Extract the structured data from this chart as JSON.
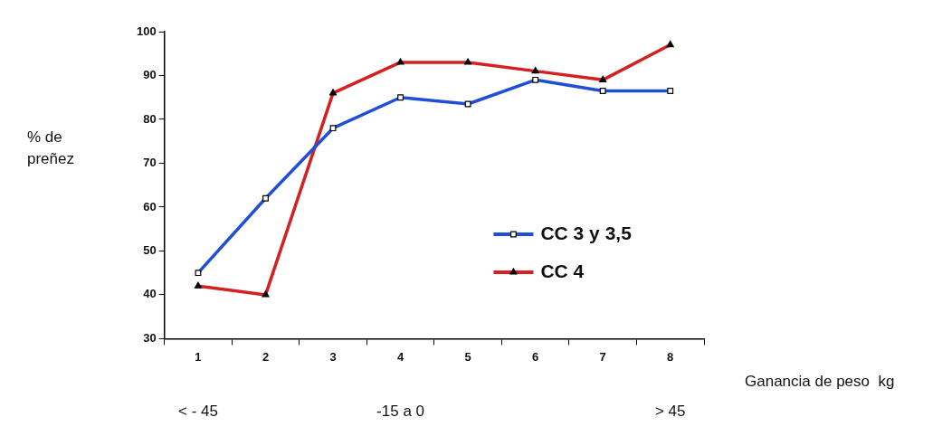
{
  "chart_data": {
    "type": "line",
    "categories": [
      "1",
      "2",
      "3",
      "4",
      "5",
      "6",
      "7",
      "8"
    ],
    "series": [
      {
        "name": "CC 3 y 3,5",
        "color": "#1f4fd6",
        "marker": "square",
        "values": [
          45,
          62,
          78,
          85,
          83.5,
          89,
          86.5,
          86.5
        ]
      },
      {
        "name": "CC 4",
        "color": "#d42020",
        "marker": "triangle",
        "values": [
          42,
          40,
          86,
          93,
          93,
          91,
          89,
          97
        ]
      }
    ],
    "ylabel": "% de\npreñez",
    "xlabel": "Ganancia de peso  kg",
    "ylim": [
      30,
      100
    ],
    "yticks": [
      30,
      40,
      50,
      60,
      70,
      80,
      90,
      100
    ],
    "grid": false,
    "legend": "center right",
    "line_style": "solid",
    "annotations": [
      "< - 45",
      "-15 a 0",
      "> 45"
    ]
  }
}
